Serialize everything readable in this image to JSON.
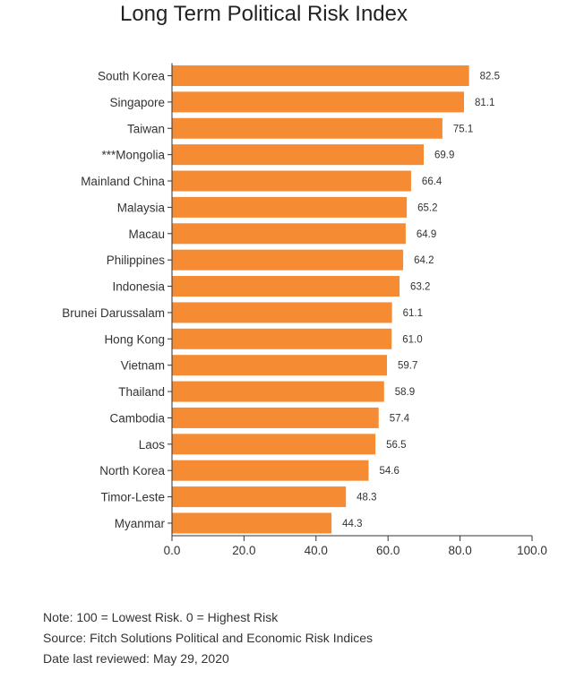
{
  "chart_data": {
    "type": "bar",
    "orientation": "horizontal",
    "title": "Long Term Political Risk Index",
    "categories": [
      "South Korea",
      "Singapore",
      "Taiwan",
      "***Mongolia",
      "Mainland China",
      "Malaysia",
      "Macau",
      "Philippines",
      "Indonesia",
      "Brunei Darussalam",
      "Hong Kong",
      "Vietnam",
      "Thailand",
      "Cambodia",
      "Laos",
      "North Korea",
      "Timor-Leste",
      "Myanmar"
    ],
    "values": [
      82.5,
      81.1,
      75.1,
      69.9,
      66.4,
      65.2,
      64.9,
      64.2,
      63.2,
      61.1,
      61.0,
      59.7,
      58.9,
      57.4,
      56.5,
      54.6,
      48.3,
      44.3
    ],
    "value_labels": [
      "82.5",
      "81.1",
      "75.1",
      "69.9",
      "66.4",
      "65.2",
      "64.9",
      "64.2",
      "63.2",
      "61.1",
      "61.0",
      "59.7",
      "58.9",
      "57.4",
      "56.5",
      "54.6",
      "48.3",
      "44.3"
    ],
    "xlim": [
      0,
      100
    ],
    "x_ticks": [
      0,
      20,
      40,
      60,
      80,
      100
    ],
    "x_tick_labels": [
      "0.0",
      "20.0",
      "40.0",
      "60.0",
      "80.0",
      "100.0"
    ],
    "xlabel": "",
    "ylabel": "",
    "grid": false,
    "bar_color": "#f58b32"
  },
  "notes": {
    "note": "Note: 100 = Lowest Risk. 0 = Highest Risk",
    "source": "Source: Fitch Solutions Political and Economic Risk Indices",
    "reviewed": "Date last reviewed: May 29, 2020"
  }
}
